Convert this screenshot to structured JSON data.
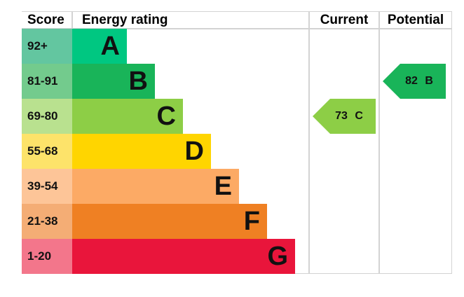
{
  "header": {
    "score": "Score",
    "energy_rating": "Energy rating",
    "current": "Current",
    "potential": "Potential"
  },
  "bands": [
    {
      "score": "92+",
      "letter": "A",
      "score_color": "#63c6a0",
      "bar_color": "#00c781"
    },
    {
      "score": "81-91",
      "letter": "B",
      "score_color": "#73cb8d",
      "bar_color": "#19b459"
    },
    {
      "score": "69-80",
      "letter": "C",
      "score_color": "#b9e18f",
      "bar_color": "#8dce46"
    },
    {
      "score": "55-68",
      "letter": "D",
      "score_color": "#fde36a",
      "bar_color": "#ffd500"
    },
    {
      "score": "39-54",
      "letter": "E",
      "score_color": "#fdc598",
      "bar_color": "#fcaa65"
    },
    {
      "score": "21-38",
      "letter": "F",
      "score_color": "#f4ad75",
      "bar_color": "#ef8023"
    },
    {
      "score": "1-20",
      "letter": "G",
      "score_color": "#f3768b",
      "bar_color": "#e9153b"
    }
  ],
  "current": {
    "label": "73 C",
    "value": 73,
    "band": "C",
    "color": "#8dce46"
  },
  "potential": {
    "label": "82 B",
    "value": 82,
    "band": "B",
    "color": "#19b459"
  },
  "chart_data": {
    "type": "bar",
    "title": "Energy rating",
    "categories": [
      "A",
      "B",
      "C",
      "D",
      "E",
      "F",
      "G"
    ],
    "score_ranges": [
      "92+",
      "81-91",
      "69-80",
      "55-68",
      "39-54",
      "21-38",
      "1-20"
    ],
    "values": [
      1,
      2,
      3,
      4,
      5,
      6,
      7
    ],
    "series": [
      {
        "name": "Current",
        "value": 73,
        "band": "C"
      },
      {
        "name": "Potential",
        "value": 82,
        "band": "B"
      }
    ],
    "xlabel": "",
    "ylabel": "Score",
    "legend": [
      "Current",
      "Potential"
    ]
  }
}
